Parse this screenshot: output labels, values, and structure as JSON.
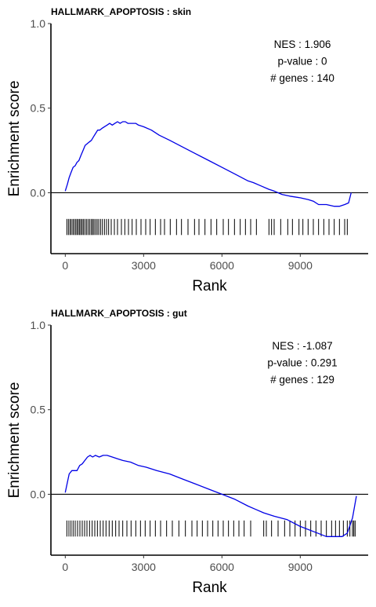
{
  "chart_data": [
    {
      "type": "line",
      "title": "HALLMARK_APOPTOSIS : skin",
      "xlabel": "Rank",
      "ylabel": "Enrichment score",
      "xlim": [
        -550,
        11600
      ],
      "ylim": [
        -0.36,
        1.0
      ],
      "xticks": [
        0,
        3000,
        6000,
        9000
      ],
      "xtick_labels": [
        "0",
        "3000",
        "6000",
        "9000"
      ],
      "yticks": [
        0.0,
        0.5,
        1.0
      ],
      "ytick_labels": [
        "0.0",
        "0.5",
        "1.0"
      ],
      "annotations": [
        "NES : 1.906",
        "p-value : 0",
        "# genes : 140"
      ],
      "series": [
        {
          "color": "#0000e6",
          "x": [
            0,
            80,
            150,
            220,
            300,
            380,
            450,
            520,
            600,
            680,
            760,
            840,
            920,
            1000,
            1080,
            1160,
            1240,
            1320,
            1400,
            1500,
            1600,
            1700,
            1800,
            1900,
            2000,
            2100,
            2200,
            2300,
            2400,
            2500,
            2600,
            2700,
            2800,
            3000,
            3300,
            3600,
            4000,
            4500,
            5000,
            5500,
            6000,
            6500,
            7000,
            7200,
            7500,
            7800,
            8000,
            8300,
            8600,
            9000,
            9300,
            9500,
            9700,
            10000,
            10300,
            10500,
            10700,
            10850,
            10950
          ],
          "y": [
            0.01,
            0.05,
            0.09,
            0.12,
            0.15,
            0.16,
            0.18,
            0.19,
            0.22,
            0.25,
            0.28,
            0.29,
            0.3,
            0.31,
            0.33,
            0.35,
            0.37,
            0.37,
            0.38,
            0.39,
            0.4,
            0.41,
            0.4,
            0.41,
            0.42,
            0.41,
            0.42,
            0.42,
            0.41,
            0.41,
            0.41,
            0.41,
            0.4,
            0.39,
            0.37,
            0.34,
            0.31,
            0.27,
            0.23,
            0.19,
            0.15,
            0.11,
            0.07,
            0.06,
            0.04,
            0.02,
            0.01,
            -0.01,
            -0.02,
            -0.03,
            -0.04,
            -0.05,
            -0.07,
            -0.07,
            -0.08,
            -0.08,
            -0.07,
            -0.06,
            0.0
          ]
        }
      ],
      "hits": [
        60,
        120,
        180,
        230,
        290,
        340,
        400,
        450,
        500,
        550,
        600,
        650,
        700,
        760,
        820,
        880,
        940,
        1000,
        1050,
        1100,
        1160,
        1220,
        1280,
        1350,
        1420,
        1500,
        1580,
        1660,
        1760,
        1880,
        2000,
        2150,
        2280,
        2420,
        2560,
        2720,
        2900,
        3080,
        3250,
        3450,
        3650,
        3800,
        4020,
        4260,
        4450,
        4700,
        4950,
        5120,
        5350,
        5580,
        5800,
        6050,
        6250,
        6480,
        6700,
        6900,
        7100,
        7320,
        7800,
        7900,
        8000,
        8250,
        8520,
        8700,
        8950,
        9100,
        9300,
        9500,
        9700,
        9900,
        10100,
        10300,
        10500,
        10700,
        10800
      ]
    },
    {
      "type": "line",
      "title": "HALLMARK_APOPTOSIS : gut",
      "xlabel": "Rank",
      "ylabel": "Enrichment score",
      "xlim": [
        -550,
        11600
      ],
      "ylim": [
        -0.36,
        1.0
      ],
      "xticks": [
        0,
        3000,
        6000,
        9000
      ],
      "xtick_labels": [
        "0",
        "3000",
        "6000",
        "9000"
      ],
      "yticks": [
        0.0,
        0.5,
        1.0
      ],
      "ytick_labels": [
        "0.0",
        "0.5",
        "1.0"
      ],
      "annotations": [
        "NES : -1.087",
        "p-value : 0.291",
        "# genes : 129"
      ],
      "series": [
        {
          "color": "#0000e6",
          "x": [
            0,
            80,
            150,
            250,
            350,
            450,
            550,
            650,
            750,
            850,
            950,
            1050,
            1150,
            1300,
            1450,
            1600,
            1800,
            2000,
            2200,
            2500,
            2800,
            3100,
            3500,
            4000,
            4500,
            5000,
            5500,
            6000,
            6500,
            7000,
            7300,
            7600,
            8000,
            8500,
            9000,
            9500,
            10000,
            10300,
            10600,
            10800,
            11000,
            11150
          ],
          "y": [
            0.01,
            0.07,
            0.12,
            0.14,
            0.14,
            0.14,
            0.17,
            0.18,
            0.2,
            0.22,
            0.23,
            0.22,
            0.23,
            0.22,
            0.23,
            0.23,
            0.22,
            0.21,
            0.2,
            0.19,
            0.17,
            0.16,
            0.14,
            0.12,
            0.09,
            0.06,
            0.03,
            0.0,
            -0.03,
            -0.07,
            -0.09,
            -0.11,
            -0.13,
            -0.15,
            -0.19,
            -0.22,
            -0.25,
            -0.25,
            -0.25,
            -0.23,
            -0.14,
            -0.01
          ]
        }
      ],
      "hits": [
        60,
        140,
        220,
        300,
        380,
        470,
        560,
        650,
        740,
        830,
        930,
        1030,
        1130,
        1230,
        1340,
        1450,
        1560,
        1680,
        1800,
        1930,
        2060,
        2200,
        2360,
        2520,
        2700,
        2880,
        3060,
        3250,
        3450,
        3650,
        3880,
        4100,
        4350,
        4600,
        4850,
        5050,
        5250,
        5450,
        5650,
        5850,
        6050,
        6250,
        6450,
        6650,
        6850,
        7100,
        7600,
        7700,
        7900,
        8150,
        8400,
        8600,
        8800,
        9000,
        9200,
        9400,
        9600,
        9800,
        10000,
        10200,
        10350,
        10500,
        10650,
        10800,
        10900,
        11000,
        11050,
        11100
      ]
    }
  ]
}
